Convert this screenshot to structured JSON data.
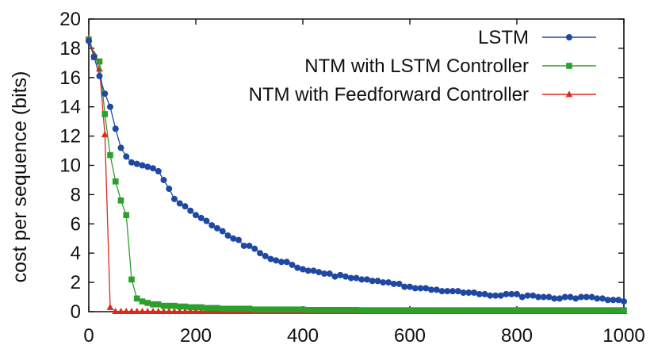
{
  "chart_data": {
    "type": "line",
    "title": "",
    "xlabel": "",
    "ylabel": "cost per sequence (bits)",
    "xlim": [
      0,
      1000
    ],
    "ylim": [
      0,
      20
    ],
    "x_ticks": [
      0,
      200,
      400,
      600,
      800,
      1000
    ],
    "y_ticks": [
      0,
      2,
      4,
      6,
      8,
      10,
      12,
      14,
      16,
      18,
      20
    ],
    "grid": false,
    "legend_position": "top-right",
    "series": [
      {
        "name": "LSTM",
        "color": "#1f48a4",
        "marker": "circle",
        "points": [
          [
            0,
            18.5
          ],
          [
            10,
            17.4
          ],
          [
            20,
            16.1
          ],
          [
            30,
            14.9
          ],
          [
            40,
            14.0
          ],
          [
            50,
            12.5
          ],
          [
            60,
            11.2
          ],
          [
            70,
            10.6
          ],
          [
            80,
            10.2
          ],
          [
            90,
            10.1
          ],
          [
            100,
            10.0
          ],
          [
            110,
            9.9
          ],
          [
            120,
            9.8
          ],
          [
            130,
            9.6
          ],
          [
            140,
            9.0
          ],
          [
            150,
            8.4
          ],
          [
            160,
            7.7
          ],
          [
            170,
            7.4
          ],
          [
            180,
            7.2
          ],
          [
            190,
            6.9
          ],
          [
            200,
            6.6
          ],
          [
            210,
            6.4
          ],
          [
            220,
            6.2
          ],
          [
            230,
            5.9
          ],
          [
            240,
            5.7
          ],
          [
            250,
            5.5
          ],
          [
            260,
            5.2
          ],
          [
            270,
            5.0
          ],
          [
            280,
            4.9
          ],
          [
            290,
            4.5
          ],
          [
            300,
            4.5
          ],
          [
            310,
            4.3
          ],
          [
            320,
            4.0
          ],
          [
            330,
            3.8
          ],
          [
            340,
            3.6
          ],
          [
            350,
            3.5
          ],
          [
            360,
            3.4
          ],
          [
            370,
            3.4
          ],
          [
            380,
            3.2
          ],
          [
            390,
            3.0
          ],
          [
            400,
            2.9
          ],
          [
            410,
            2.8
          ],
          [
            420,
            2.8
          ],
          [
            430,
            2.7
          ],
          [
            440,
            2.6
          ],
          [
            450,
            2.6
          ],
          [
            460,
            2.4
          ],
          [
            470,
            2.5
          ],
          [
            480,
            2.4
          ],
          [
            490,
            2.3
          ],
          [
            500,
            2.3
          ],
          [
            510,
            2.2
          ],
          [
            520,
            2.2
          ],
          [
            530,
            2.1
          ],
          [
            540,
            2.1
          ],
          [
            550,
            2.0
          ],
          [
            560,
            2.0
          ],
          [
            570,
            1.9
          ],
          [
            580,
            1.9
          ],
          [
            590,
            1.7
          ],
          [
            600,
            1.7
          ],
          [
            610,
            1.6
          ],
          [
            620,
            1.6
          ],
          [
            630,
            1.6
          ],
          [
            640,
            1.5
          ],
          [
            650,
            1.5
          ],
          [
            660,
            1.4
          ],
          [
            670,
            1.4
          ],
          [
            680,
            1.4
          ],
          [
            690,
            1.4
          ],
          [
            700,
            1.3
          ],
          [
            710,
            1.3
          ],
          [
            720,
            1.3
          ],
          [
            730,
            1.2
          ],
          [
            740,
            1.2
          ],
          [
            750,
            1.1
          ],
          [
            760,
            1.1
          ],
          [
            770,
            1.1
          ],
          [
            780,
            1.2
          ],
          [
            790,
            1.2
          ],
          [
            800,
            1.2
          ],
          [
            810,
            1.0
          ],
          [
            820,
            1.1
          ],
          [
            830,
            1.1
          ],
          [
            840,
            1.0
          ],
          [
            850,
            1.0
          ],
          [
            860,
            1.0
          ],
          [
            870,
            0.9
          ],
          [
            880,
            0.9
          ],
          [
            890,
            1.0
          ],
          [
            900,
            1.0
          ],
          [
            910,
            0.9
          ],
          [
            920,
            1.0
          ],
          [
            930,
            1.0
          ],
          [
            940,
            1.0
          ],
          [
            950,
            0.9
          ],
          [
            960,
            0.9
          ],
          [
            970,
            0.8
          ],
          [
            980,
            0.8
          ],
          [
            990,
            0.8
          ],
          [
            1000,
            0.7
          ]
        ]
      },
      {
        "name": "NTM with LSTM Controller",
        "color": "#2ca02c",
        "marker": "square",
        "points": [
          [
            0,
            18.6
          ],
          [
            10,
            17.4
          ],
          [
            20,
            17.1
          ],
          [
            30,
            13.5
          ],
          [
            40,
            10.7
          ],
          [
            50,
            8.9
          ],
          [
            60,
            7.6
          ],
          [
            70,
            6.6
          ],
          [
            80,
            2.2
          ],
          [
            90,
            0.9
          ],
          [
            100,
            0.7
          ],
          [
            110,
            0.6
          ],
          [
            120,
            0.5
          ],
          [
            130,
            0.5
          ],
          [
            140,
            0.4
          ],
          [
            150,
            0.4
          ],
          [
            160,
            0.4
          ],
          [
            170,
            0.35
          ],
          [
            180,
            0.35
          ],
          [
            190,
            0.3
          ],
          [
            200,
            0.3
          ],
          [
            210,
            0.3
          ],
          [
            220,
            0.25
          ],
          [
            230,
            0.25
          ],
          [
            240,
            0.25
          ],
          [
            250,
            0.2
          ],
          [
            260,
            0.2
          ],
          [
            270,
            0.2
          ],
          [
            280,
            0.2
          ],
          [
            290,
            0.2
          ],
          [
            300,
            0.2
          ],
          [
            310,
            0.15
          ],
          [
            320,
            0.15
          ],
          [
            330,
            0.15
          ],
          [
            340,
            0.15
          ],
          [
            350,
            0.15
          ],
          [
            360,
            0.15
          ],
          [
            370,
            0.15
          ],
          [
            380,
            0.15
          ],
          [
            390,
            0.15
          ],
          [
            400,
            0.15
          ],
          [
            410,
            0.12
          ],
          [
            420,
            0.12
          ],
          [
            430,
            0.12
          ],
          [
            440,
            0.12
          ],
          [
            450,
            0.12
          ],
          [
            460,
            0.12
          ],
          [
            470,
            0.12
          ],
          [
            480,
            0.12
          ],
          [
            490,
            0.12
          ],
          [
            500,
            0.12
          ],
          [
            510,
            0.1
          ],
          [
            520,
            0.1
          ],
          [
            530,
            0.1
          ],
          [
            540,
            0.1
          ],
          [
            550,
            0.1
          ],
          [
            560,
            0.1
          ],
          [
            570,
            0.1
          ],
          [
            580,
            0.1
          ],
          [
            590,
            0.1
          ],
          [
            600,
            0.1
          ],
          [
            610,
            0.1
          ],
          [
            620,
            0.1
          ],
          [
            630,
            0.1
          ],
          [
            640,
            0.1
          ],
          [
            650,
            0.1
          ],
          [
            660,
            0.1
          ],
          [
            670,
            0.1
          ],
          [
            680,
            0.1
          ],
          [
            690,
            0.1
          ],
          [
            700,
            0.1
          ],
          [
            710,
            0.1
          ],
          [
            720,
            0.1
          ],
          [
            730,
            0.1
          ],
          [
            740,
            0.1
          ],
          [
            750,
            0.1
          ],
          [
            760,
            0.1
          ],
          [
            770,
            0.1
          ],
          [
            780,
            0.1
          ],
          [
            790,
            0.1
          ],
          [
            800,
            0.1
          ],
          [
            810,
            0.1
          ],
          [
            820,
            0.1
          ],
          [
            830,
            0.1
          ],
          [
            840,
            0.1
          ],
          [
            850,
            0.1
          ],
          [
            860,
            0.1
          ],
          [
            870,
            0.1
          ],
          [
            880,
            0.1
          ],
          [
            890,
            0.1
          ],
          [
            900,
            0.1
          ],
          [
            910,
            0.1
          ],
          [
            920,
            0.1
          ],
          [
            930,
            0.1
          ],
          [
            940,
            0.1
          ],
          [
            950,
            0.1
          ],
          [
            960,
            0.1
          ],
          [
            970,
            0.1
          ],
          [
            980,
            0.1
          ],
          [
            990,
            0.1
          ],
          [
            1000,
            0.1
          ]
        ]
      },
      {
        "name": "NTM with Feedforward Controller",
        "color": "#dd2a1b",
        "marker": "triangle",
        "points": [
          [
            0,
            18.7
          ],
          [
            10,
            17.6
          ],
          [
            20,
            16.6
          ],
          [
            30,
            12.1
          ],
          [
            40,
            0.3
          ],
          [
            50,
            0.02
          ],
          [
            60,
            0.02
          ],
          [
            70,
            0.02
          ],
          [
            80,
            0.02
          ],
          [
            90,
            0.02
          ],
          [
            100,
            0.02
          ],
          [
            110,
            0.02
          ],
          [
            120,
            0.02
          ],
          [
            130,
            0.02
          ],
          [
            140,
            0.02
          ],
          [
            150,
            0.02
          ],
          [
            160,
            0.02
          ],
          [
            170,
            0.02
          ],
          [
            180,
            0.02
          ],
          [
            190,
            0.02
          ],
          [
            200,
            0.02
          ],
          [
            210,
            0.02
          ],
          [
            220,
            0.02
          ],
          [
            230,
            0.02
          ],
          [
            240,
            0.02
          ],
          [
            250,
            0.02
          ],
          [
            260,
            0.02
          ],
          [
            270,
            0.02
          ],
          [
            280,
            0.02
          ],
          [
            290,
            0.02
          ],
          [
            300,
            0.02
          ],
          [
            310,
            0.02
          ],
          [
            320,
            0.02
          ],
          [
            330,
            0.02
          ],
          [
            340,
            0.02
          ],
          [
            350,
            0.02
          ],
          [
            360,
            0.02
          ],
          [
            370,
            0.02
          ],
          [
            380,
            0.02
          ],
          [
            390,
            0.02
          ],
          [
            400,
            0.02
          ],
          [
            410,
            0.02
          ],
          [
            420,
            0.02
          ],
          [
            430,
            0.02
          ],
          [
            440,
            0.02
          ],
          [
            450,
            0.02
          ],
          [
            460,
            0.02
          ],
          [
            470,
            0.02
          ],
          [
            480,
            0.02
          ],
          [
            490,
            0.02
          ],
          [
            500,
            0.02
          ],
          [
            510,
            0.02
          ],
          [
            520,
            0.02
          ],
          [
            530,
            0.02
          ],
          [
            540,
            0.02
          ],
          [
            550,
            0.02
          ],
          [
            560,
            0.02
          ],
          [
            570,
            0.02
          ],
          [
            580,
            0.02
          ],
          [
            590,
            0.02
          ],
          [
            600,
            0.02
          ],
          [
            610,
            0.02
          ],
          [
            620,
            0.02
          ],
          [
            630,
            0.02
          ],
          [
            640,
            0.02
          ],
          [
            650,
            0.02
          ],
          [
            660,
            0.02
          ],
          [
            670,
            0.02
          ],
          [
            680,
            0.02
          ],
          [
            690,
            0.02
          ],
          [
            700,
            0.02
          ],
          [
            710,
            0.02
          ],
          [
            720,
            0.02
          ],
          [
            730,
            0.02
          ],
          [
            740,
            0.02
          ],
          [
            750,
            0.02
          ],
          [
            760,
            0.02
          ],
          [
            770,
            0.02
          ],
          [
            780,
            0.02
          ],
          [
            790,
            0.02
          ],
          [
            800,
            0.02
          ],
          [
            810,
            0.02
          ],
          [
            820,
            0.02
          ],
          [
            830,
            0.02
          ],
          [
            840,
            0.02
          ],
          [
            850,
            0.02
          ],
          [
            860,
            0.02
          ],
          [
            870,
            0.02
          ],
          [
            880,
            0.02
          ],
          [
            890,
            0.02
          ],
          [
            900,
            0.02
          ],
          [
            910,
            0.02
          ],
          [
            920,
            0.02
          ],
          [
            930,
            0.02
          ],
          [
            940,
            0.02
          ],
          [
            950,
            0.02
          ],
          [
            960,
            0.02
          ],
          [
            970,
            0.02
          ],
          [
            980,
            0.02
          ],
          [
            990,
            0.02
          ],
          [
            1000,
            0.02
          ]
        ]
      }
    ]
  }
}
